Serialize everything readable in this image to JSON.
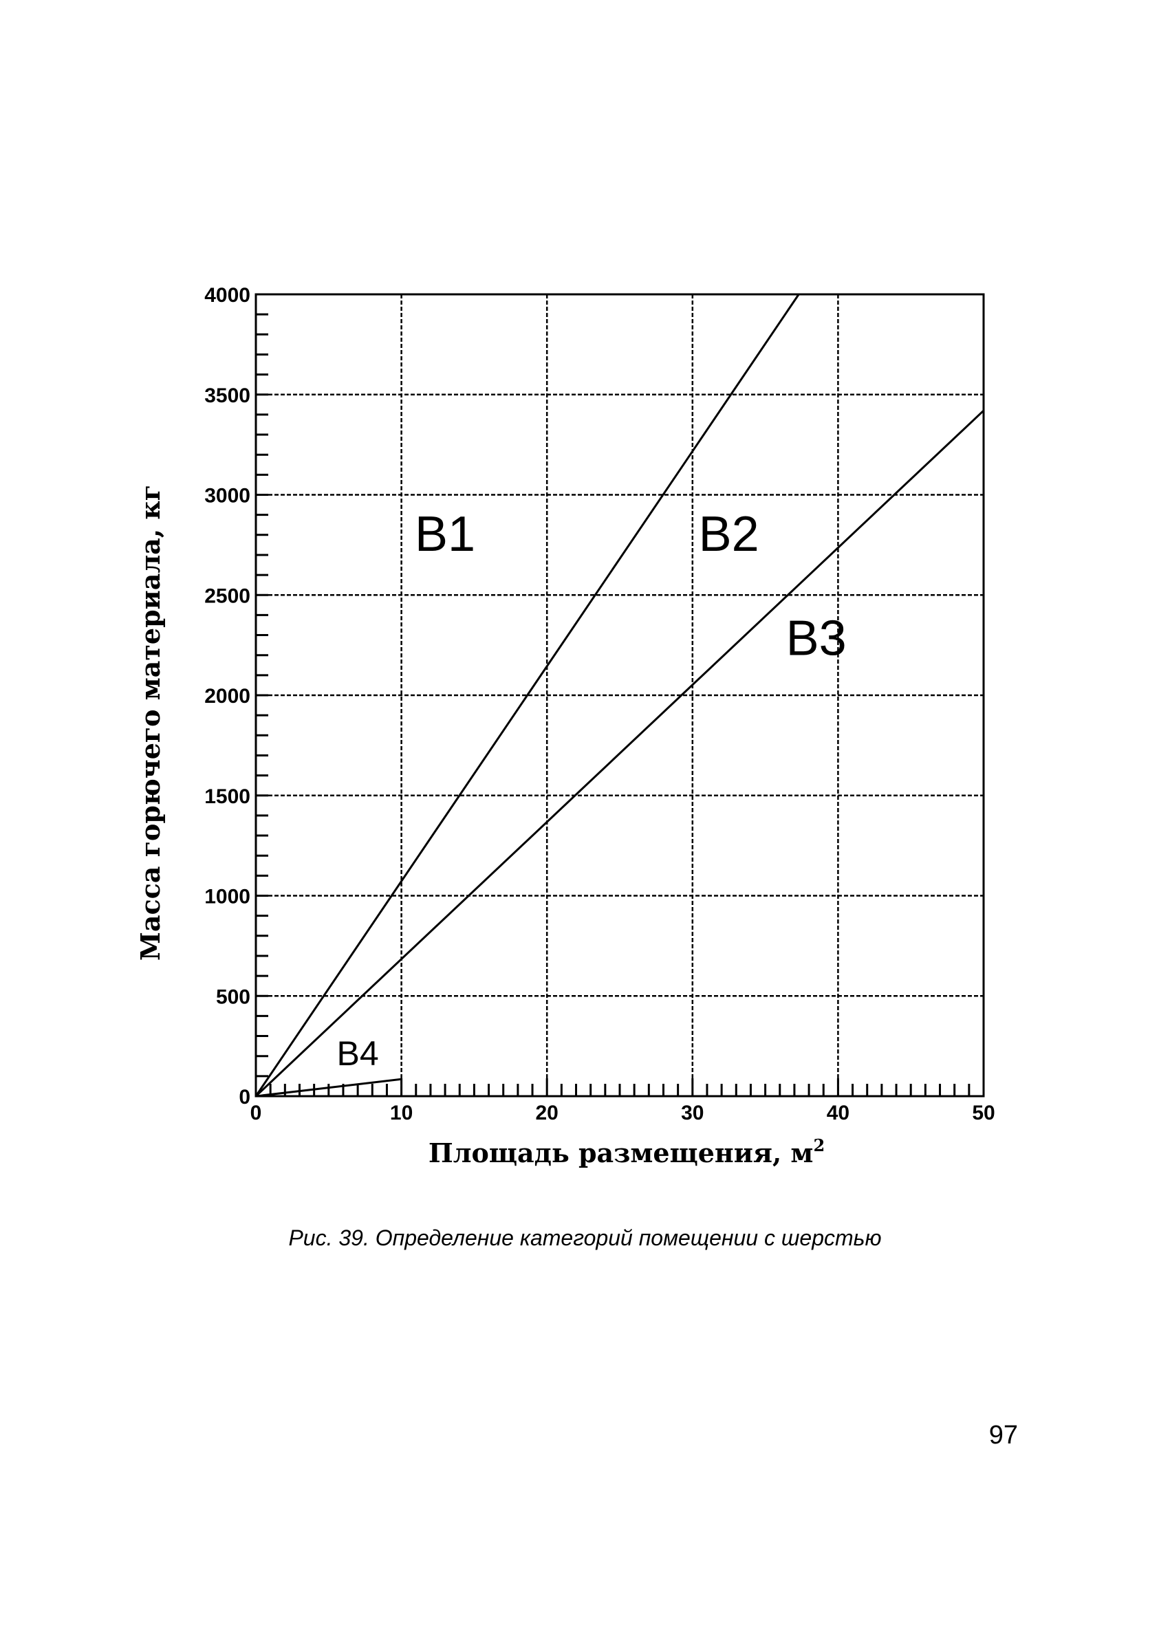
{
  "chart_data": {
    "type": "line",
    "xlabel": "Площадь размещения, м",
    "xlabel_sup": "2",
    "ylabel": "Масса горючего материала, кг",
    "xlim": [
      0,
      50
    ],
    "ylim": [
      0,
      4000
    ],
    "x_ticks": [
      0,
      10,
      20,
      30,
      40,
      50
    ],
    "y_ticks": [
      0,
      500,
      1000,
      1500,
      2000,
      2500,
      3000,
      3500,
      4000
    ],
    "x_tick_labels": [
      "0",
      "10",
      "20",
      "30",
      "40",
      "50"
    ],
    "y_tick_labels": [
      "0",
      "500",
      "1000",
      "1500",
      "2000",
      "2500",
      "3000",
      "3500",
      "4000"
    ],
    "grid": true,
    "series": [
      {
        "x": [
          0,
          37.3
        ],
        "y": [
          0,
          4000
        ]
      },
      {
        "x": [
          0,
          50
        ],
        "y": [
          0,
          3420
        ]
      },
      {
        "x": [
          0,
          10
        ],
        "y": [
          0,
          85
        ]
      }
    ],
    "region_labels": [
      {
        "text": "B1",
        "x": 13,
        "y": 2720
      },
      {
        "text": "B2",
        "x": 32.5,
        "y": 2720
      },
      {
        "text": "B3",
        "x": 38.5,
        "y": 2200
      },
      {
        "text": "B4",
        "x": 7,
        "y": 155
      }
    ]
  },
  "caption": "Рис. 39. Определение категорий помещении с шерстью",
  "page_number": "97"
}
